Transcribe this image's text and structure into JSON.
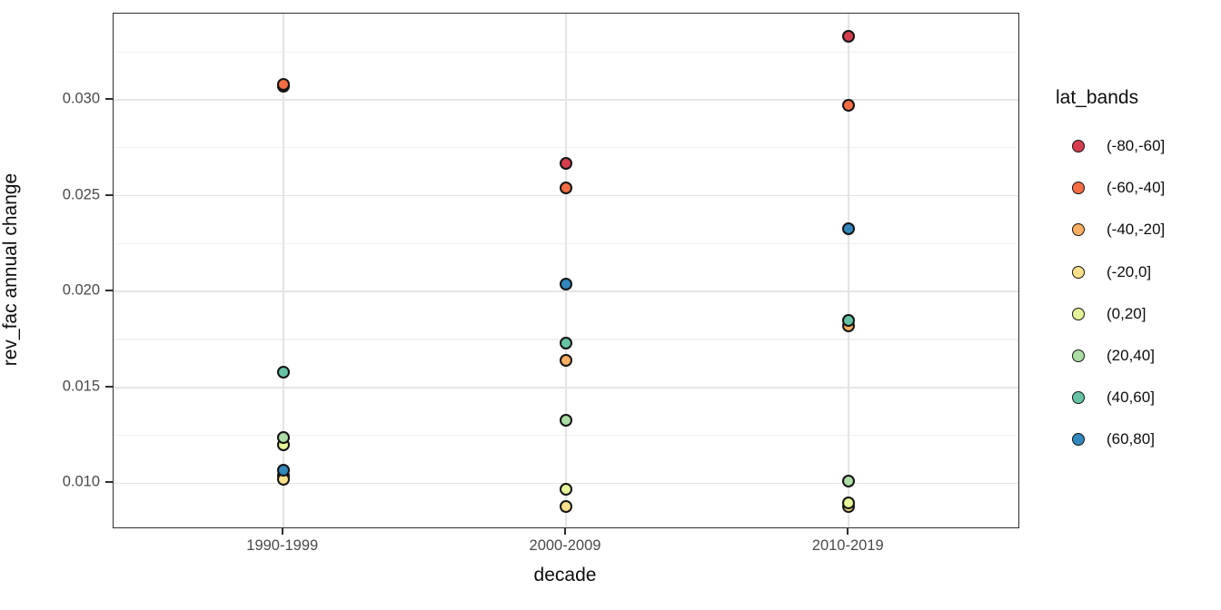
{
  "chart_data": {
    "type": "scatter",
    "title": "",
    "xlabel": "decade",
    "ylabel": "rev_fac annual change",
    "legend_title": "lat_bands",
    "legend_position": "right",
    "grid": true,
    "categories": [
      "1990-1999",
      "2000-2009",
      "2010-2019"
    ],
    "y_ticks": [
      0.01,
      0.015,
      0.02,
      0.025,
      0.03
    ],
    "y_tick_labels": [
      "0.010",
      "0.015",
      "0.020",
      "0.025",
      "0.030"
    ],
    "y_minor_ticks": [
      0.0125,
      0.0175,
      0.0225,
      0.0275,
      0.0325
    ],
    "ylim": [
      0.0077,
      0.0345
    ],
    "series": [
      {
        "name": "(-80,-60]",
        "color": "#D53E4F",
        "values": [
          0.0307,
          0.0267,
          0.0333
        ]
      },
      {
        "name": "(-60,-40]",
        "color": "#F46D43",
        "values": [
          0.0308,
          0.0254,
          0.0297
        ]
      },
      {
        "name": "(-40,-20]",
        "color": "#FDAE61",
        "values": [
          0.0104,
          0.0164,
          0.0182
        ]
      },
      {
        "name": "(-20,0]",
        "color": "#FEE08B",
        "values": [
          0.0102,
          0.0088,
          0.0088
        ]
      },
      {
        "name": "(0,20]",
        "color": "#E6F598",
        "values": [
          0.012,
          0.0097,
          0.009
        ]
      },
      {
        "name": "(20,40]",
        "color": "#ABDDA4",
        "values": [
          0.0124,
          0.0133,
          0.0101
        ]
      },
      {
        "name": "(40,60]",
        "color": "#66C2A5",
        "values": [
          0.0158,
          0.0173,
          0.0185
        ]
      },
      {
        "name": "(60,80]",
        "color": "#3288BD",
        "values": [
          0.0107,
          0.0204,
          0.0233
        ]
      }
    ]
  },
  "theme": {
    "background": "#FFFFFF",
    "panel_border": "#2E2E2E",
    "grid_major": "#E4E4E4",
    "grid_minor": "#F1F1F1",
    "tick_label_color": "#4A4A4A",
    "title_color": "#0D0D0D",
    "point_stroke": "#141414"
  }
}
